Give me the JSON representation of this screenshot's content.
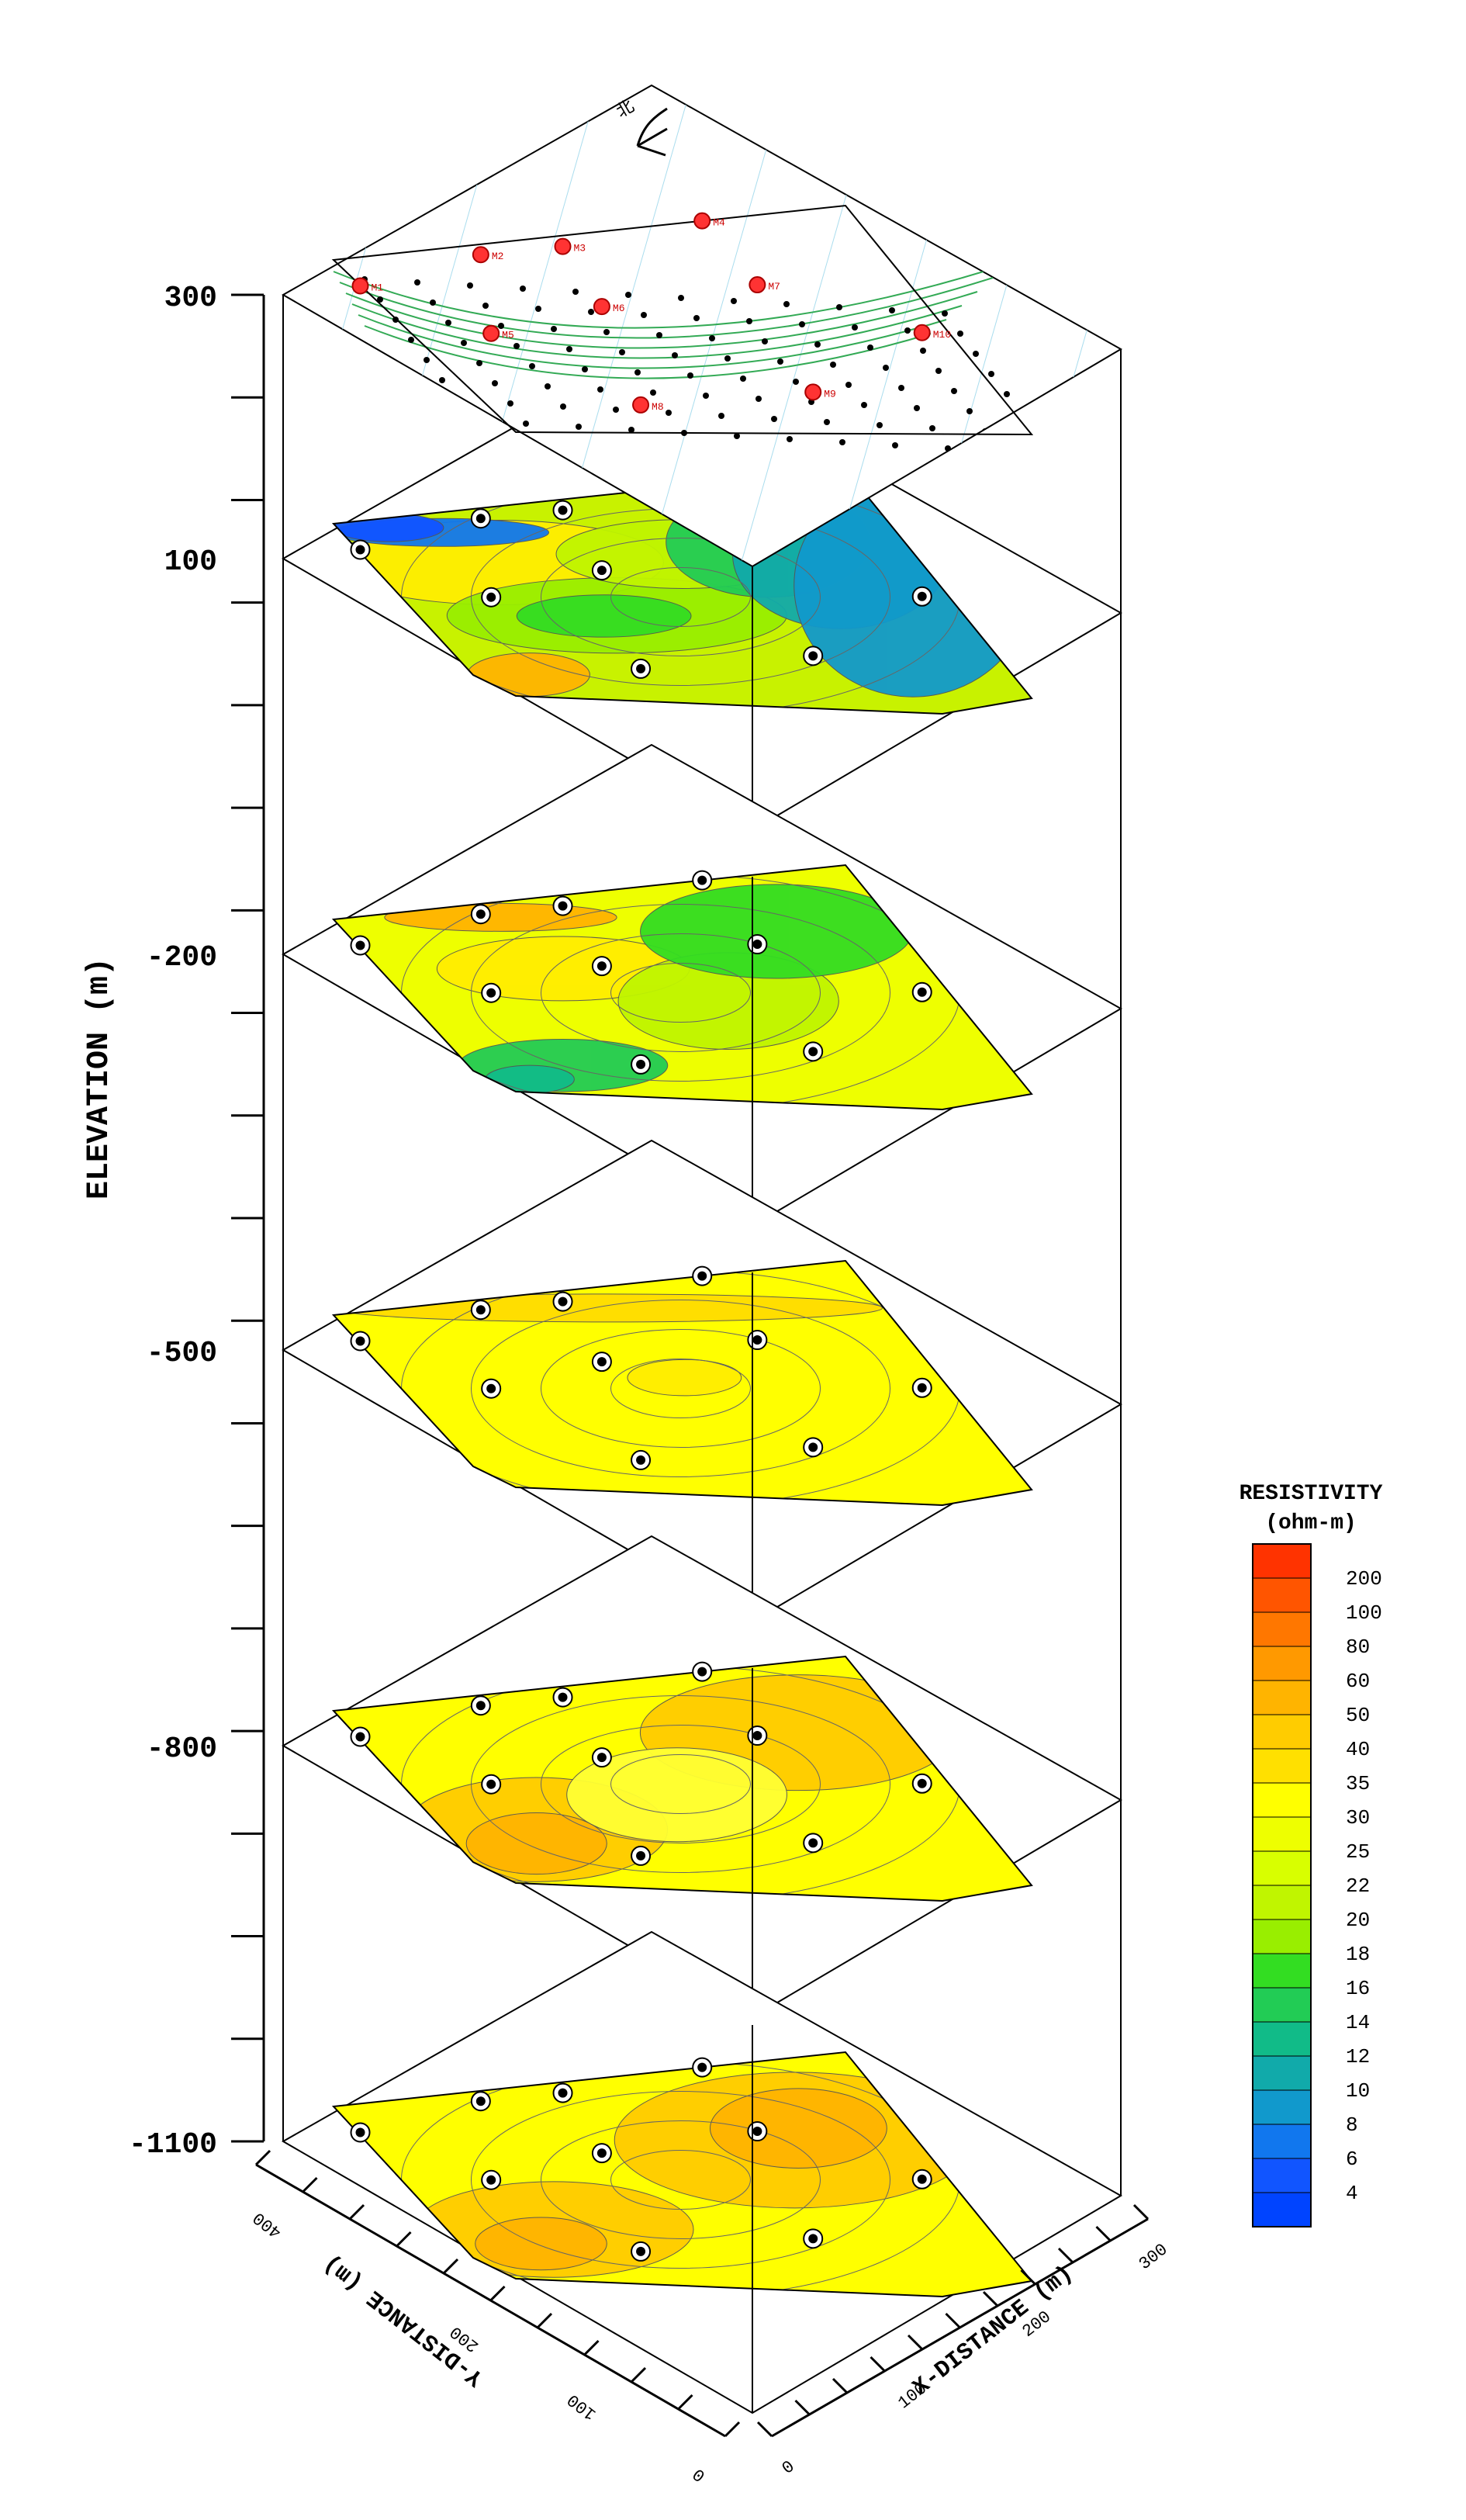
{
  "chart_data": {
    "type": "3d-stacked-contour-slices",
    "title": "",
    "z_axis": {
      "label": "ELEVATION (m)",
      "ticks": [
        "300",
        "100",
        "-200",
        "-500",
        "-800",
        "-1100"
      ],
      "range": [
        -1100,
        300
      ]
    },
    "x_axis": {
      "label": "X-DISTANCE (m)",
      "ticks": [
        "0",
        "100",
        "200",
        "300"
      ],
      "range": [
        0,
        300
      ]
    },
    "y_axis": {
      "label": "Y-DISTANCE (m)",
      "ticks": [
        "0",
        "100",
        "200",
        "400"
      ],
      "range": [
        0,
        400
      ]
    },
    "north_label": "北",
    "legend": {
      "title_line1": "RESISTIVITY",
      "title_line2": "(ohm-m)",
      "levels": [
        {
          "label": "200",
          "color": "#ff3300"
        },
        {
          "label": "100",
          "color": "#ff5500"
        },
        {
          "label": "80",
          "color": "#ff7700"
        },
        {
          "label": "60",
          "color": "#ff9900"
        },
        {
          "label": "50",
          "color": "#ffb400"
        },
        {
          "label": "40",
          "color": "#ffcc00"
        },
        {
          "label": "35",
          "color": "#ffe000"
        },
        {
          "label": "30",
          "color": "#ffff00"
        },
        {
          "label": "25",
          "color": "#eeff00"
        },
        {
          "label": "22",
          "color": "#d8ff00"
        },
        {
          "label": "20",
          "color": "#c0f500"
        },
        {
          "label": "18",
          "color": "#99ee00"
        },
        {
          "label": "16",
          "color": "#33dd22"
        },
        {
          "label": "14",
          "color": "#22cc55"
        },
        {
          "label": "12",
          "color": "#11bb88"
        },
        {
          "label": "10",
          "color": "#11aaaa"
        },
        {
          "label": "8",
          "color": "#1199cc"
        },
        {
          "label": "6",
          "color": "#1177ee"
        },
        {
          "label": "4",
          "color": "#1155ff"
        }
      ],
      "bottom_color": "#0044ff"
    },
    "slices": [
      {
        "elevation": 100,
        "regions": [
          {
            "color": "#ffee00",
            "u0": 0.0,
            "u1": 0.45,
            "v0": 0.0,
            "v1": 0.55
          },
          {
            "color": "#ffb400",
            "u0": 0.0,
            "u1": 0.15,
            "v0": 0.75,
            "v1": 1.0
          },
          {
            "color": "#99ee00",
            "u0": 0.1,
            "u1": 0.6,
            "v0": 0.35,
            "v1": 0.8
          },
          {
            "color": "#c0f500",
            "u0": 0.4,
            "u1": 0.75,
            "v0": 0.1,
            "v1": 0.5
          },
          {
            "color": "#33dd22",
            "u0": 0.2,
            "u1": 0.45,
            "v0": 0.45,
            "v1": 0.7
          },
          {
            "color": "#22cc55",
            "u0": 0.65,
            "u1": 0.85,
            "v0": 0.0,
            "v1": 0.55
          },
          {
            "color": "#11aaaa",
            "u0": 0.78,
            "u1": 0.95,
            "v0": 0.0,
            "v1": 0.7
          },
          {
            "color": "#1199cc",
            "u0": 0.9,
            "u1": 1.0,
            "v0": 0.0,
            "v1": 1.0
          },
          {
            "color": "#1177ee",
            "u0": 0.0,
            "u1": 0.35,
            "v0": 0.0,
            "v1": 0.2
          },
          {
            "color": "#1155ff",
            "u0": 0.0,
            "u1": 0.18,
            "v0": 0.0,
            "v1": 0.1
          }
        ]
      },
      {
        "elevation": -200,
        "regions": [
          {
            "color": "#ffb400",
            "u0": 0.1,
            "u1": 0.5,
            "v0": 0.0,
            "v1": 0.15
          },
          {
            "color": "#ffee00",
            "u0": 0.15,
            "u1": 0.5,
            "v0": 0.15,
            "v1": 0.55
          },
          {
            "color": "#c0f500",
            "u0": 0.45,
            "u1": 0.7,
            "v0": 0.3,
            "v1": 0.8
          },
          {
            "color": "#33dd22",
            "u0": 0.6,
            "u1": 0.95,
            "v0": 0.0,
            "v1": 0.5
          },
          {
            "color": "#22cc55",
            "u0": 0.0,
            "u1": 0.3,
            "v0": 0.7,
            "v1": 1.0
          },
          {
            "color": "#11bb88",
            "u0": 0.0,
            "u1": 0.12,
            "v0": 0.85,
            "v1": 1.0
          }
        ]
      },
      {
        "elevation": -500,
        "regions": [
          {
            "color": "#ffdd00",
            "u0": 0.0,
            "u1": 1.0,
            "v0": 0.0,
            "v1": 0.2
          },
          {
            "color": "#ffee00",
            "u0": 0.45,
            "u1": 0.6,
            "v0": 0.35,
            "v1": 0.55
          }
        ]
      },
      {
        "elevation": -800,
        "regions": [
          {
            "color": "#ffcc00",
            "u0": 0.0,
            "u1": 0.3,
            "v0": 0.4,
            "v1": 1.0
          },
          {
            "color": "#ffb400",
            "u0": 0.05,
            "u1": 0.2,
            "v0": 0.6,
            "v1": 0.95
          },
          {
            "color": "#ffcc00",
            "u0": 0.6,
            "u1": 1.0,
            "v0": 0.0,
            "v1": 0.6
          },
          {
            "color": "#ffff33",
            "u0": 0.35,
            "u1": 0.6,
            "v0": 0.3,
            "v1": 0.8
          }
        ]
      },
      {
        "elevation": -1100,
        "regions": [
          {
            "color": "#ffcc00",
            "u0": 0.0,
            "u1": 0.35,
            "v0": 0.45,
            "v1": 1.0
          },
          {
            "color": "#ffb400",
            "u0": 0.05,
            "u1": 0.2,
            "v0": 0.65,
            "v1": 0.95
          },
          {
            "color": "#ffcc00",
            "u0": 0.55,
            "u1": 1.0,
            "v0": 0.0,
            "v1": 0.7
          },
          {
            "color": "#ffb400",
            "u0": 0.7,
            "u1": 0.9,
            "v0": 0.1,
            "v1": 0.5
          }
        ]
      }
    ],
    "stations": [
      {
        "u": 0.0,
        "v": 0.15
      },
      {
        "u": 0.27,
        "v": 0.05
      },
      {
        "u": 0.43,
        "v": 0.05
      },
      {
        "u": 0.72,
        "v": 0.0
      },
      {
        "u": 0.15,
        "v": 0.45
      },
      {
        "u": 0.4,
        "v": 0.35
      },
      {
        "u": 0.72,
        "v": 0.3
      },
      {
        "u": 0.3,
        "v": 0.85
      },
      {
        "u": 0.65,
        "v": 0.8
      },
      {
        "u": 0.95,
        "v": 0.55
      }
    ],
    "top_map": {
      "station_labels": [
        "M1",
        "M2",
        "M3",
        "M4",
        "M5",
        "M6",
        "M7",
        "M8",
        "M9",
        "M10"
      ],
      "roads_color": "#33aa55",
      "grid_color": "#aaddee"
    }
  }
}
